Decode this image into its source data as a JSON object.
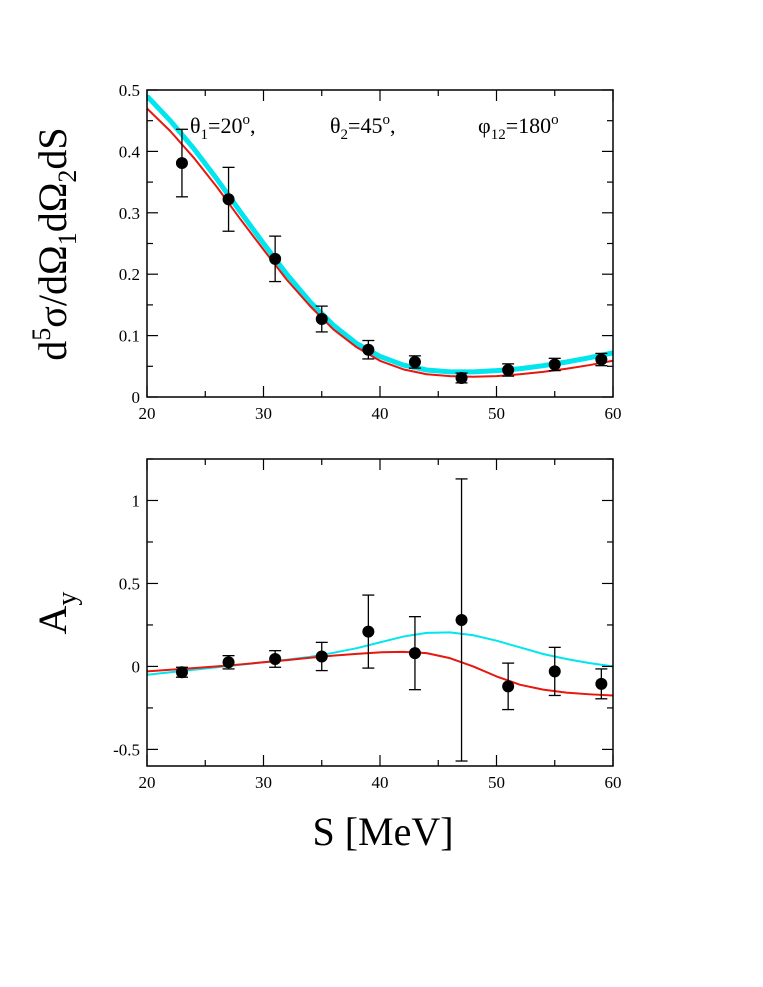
{
  "figure": {
    "xlabel": "S [MeV]"
  },
  "chart_data": [
    {
      "type": "line",
      "ylabel": "d^5σ/dΩ1dΩ2dS",
      "ylabel_parts": {
        "base": "d",
        "sup5": "5",
        "mid": "σ/dΩ",
        "sub1": "1",
        "mid2": "dΩ",
        "sub2": "2",
        "tail": "dS"
      },
      "annotations": [
        {
          "sym": "θ",
          "sub": "1",
          "val": "=20",
          "sup": "o",
          "tail": ","
        },
        {
          "sym": "θ",
          "sub": "2",
          "val": "=45",
          "sup": "o",
          "tail": ","
        },
        {
          "sym": "φ",
          "sub": "12",
          "val": "=180",
          "sup": "o",
          "tail": ""
        }
      ],
      "xlim": [
        20,
        60
      ],
      "ylim": [
        0,
        0.5
      ],
      "xticks": [
        20,
        30,
        40,
        50,
        60
      ],
      "xtick_labels": [
        "20",
        "30",
        "40",
        "50",
        "60"
      ],
      "yticks": [
        0,
        0.1,
        0.2,
        0.3,
        0.4,
        0.5
      ],
      "ytick_labels": [
        "0",
        "0.1",
        "0.2",
        "0.3",
        "0.4",
        "0.5"
      ],
      "grid": false,
      "series": [
        {
          "style": "line",
          "color": "#00e5ee",
          "width": 5,
          "x": [
            20,
            22,
            24,
            26,
            28,
            30,
            32,
            34,
            36,
            38,
            40,
            42,
            44,
            46,
            48,
            50,
            52,
            54,
            56,
            58,
            60
          ],
          "y": [
            0.49,
            0.45,
            0.405,
            0.355,
            0.302,
            0.25,
            0.2,
            0.155,
            0.117,
            0.087,
            0.066,
            0.052,
            0.044,
            0.041,
            0.041,
            0.043,
            0.046,
            0.051,
            0.057,
            0.064,
            0.072
          ]
        },
        {
          "style": "line",
          "color": "#e8160c",
          "width": 2,
          "x": [
            20,
            22,
            24,
            26,
            28,
            30,
            32,
            34,
            36,
            38,
            40,
            42,
            44,
            46,
            48,
            50,
            52,
            54,
            56,
            58,
            60
          ],
          "y": [
            0.47,
            0.433,
            0.39,
            0.342,
            0.29,
            0.24,
            0.191,
            0.148,
            0.11,
            0.081,
            0.059,
            0.045,
            0.037,
            0.034,
            0.033,
            0.034,
            0.037,
            0.041,
            0.046,
            0.052,
            0.059
          ]
        },
        {
          "style": "points",
          "color": "#000000",
          "x": [
            23,
            27,
            31,
            35,
            39,
            43,
            47,
            51,
            55,
            59
          ],
          "y": [
            0.381,
            0.322,
            0.225,
            0.127,
            0.077,
            0.057,
            0.031,
            0.044,
            0.053,
            0.061
          ],
          "err": [
            0.055,
            0.052,
            0.037,
            0.021,
            0.015,
            0.01,
            0.008,
            0.01,
            0.01,
            0.01
          ]
        }
      ]
    },
    {
      "type": "line",
      "ylabel": "Ay",
      "ylabel_parts": {
        "base": "A",
        "sub": "y"
      },
      "xlim": [
        20,
        60
      ],
      "ylim": [
        -0.6,
        1.25
      ],
      "xticks": [
        20,
        30,
        40,
        50,
        60
      ],
      "xtick_labels": [
        "20",
        "30",
        "40",
        "50",
        "60"
      ],
      "yticks": [
        -0.5,
        0,
        0.5,
        1
      ],
      "ytick_labels": [
        "-0.5",
        "0",
        "0.5",
        "1"
      ],
      "grid": false,
      "series": [
        {
          "style": "line",
          "color": "#00e5ee",
          "width": 2,
          "x": [
            20,
            22,
            24,
            26,
            28,
            30,
            32,
            34,
            36,
            38,
            40,
            42,
            44,
            46,
            48,
            50,
            52,
            54,
            56,
            58,
            60
          ],
          "y": [
            -0.05,
            -0.035,
            -0.02,
            -0.005,
            0.01,
            0.025,
            0.04,
            0.058,
            0.082,
            0.11,
            0.145,
            0.18,
            0.202,
            0.205,
            0.188,
            0.155,
            0.115,
            0.075,
            0.045,
            0.02,
            0.0
          ]
        },
        {
          "style": "line",
          "color": "#e8160c",
          "width": 2,
          "x": [
            20,
            22,
            24,
            26,
            28,
            30,
            32,
            34,
            36,
            38,
            40,
            42,
            44,
            46,
            48,
            50,
            52,
            54,
            56,
            58,
            60
          ],
          "y": [
            -0.03,
            -0.02,
            -0.01,
            0.0,
            0.012,
            0.025,
            0.038,
            0.052,
            0.065,
            0.076,
            0.085,
            0.088,
            0.08,
            0.05,
            0.0,
            -0.06,
            -0.11,
            -0.14,
            -0.158,
            -0.168,
            -0.175
          ]
        },
        {
          "style": "points",
          "color": "#000000",
          "x": [
            23,
            27,
            31,
            35,
            39,
            43,
            47,
            51,
            55,
            59
          ],
          "y": [
            -0.035,
            0.025,
            0.045,
            0.06,
            0.21,
            0.08,
            0.28,
            -0.12,
            -0.03,
            -0.105
          ],
          "err": [
            0.03,
            0.04,
            0.05,
            0.085,
            0.22,
            0.22,
            0.85,
            0.14,
            0.145,
            0.09
          ]
        }
      ]
    }
  ]
}
